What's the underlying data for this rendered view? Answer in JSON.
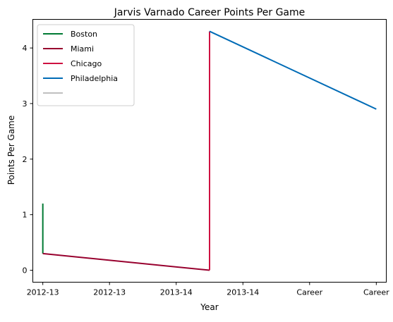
{
  "chart_data": {
    "type": "line",
    "title": "Jarvis Varnado Career Points Per Game",
    "xlabel": "Year",
    "ylabel": "Points Per Game",
    "x_tick_labels": [
      "2012-13",
      "2012-13",
      "2013-14",
      "2013-14",
      "Career",
      "Career"
    ],
    "y_ticks": [
      0,
      1,
      2,
      3,
      4
    ],
    "xlim": [
      -0.15,
      5.15
    ],
    "ylim": [
      -0.215,
      4.515
    ],
    "grid": false,
    "legend_position": "top-left",
    "series": [
      {
        "name": "Boston",
        "color": "#007a33",
        "points": [
          [
            0,
            0.3
          ],
          [
            0,
            1.2
          ]
        ]
      },
      {
        "name": "Miami",
        "color": "#98002e",
        "points": [
          [
            0,
            0.3
          ],
          [
            2.5,
            0.0
          ]
        ]
      },
      {
        "name": "Chicago",
        "color": "#ce1141",
        "points": [
          [
            2.5,
            0.0
          ],
          [
            2.5,
            4.3
          ]
        ]
      },
      {
        "name": "Philadelphia",
        "color": "#006bb6",
        "points": [
          [
            2.5,
            4.3
          ],
          [
            5,
            2.9
          ]
        ]
      },
      {
        "name": "",
        "color": "#c0c0c0",
        "points": []
      }
    ]
  }
}
